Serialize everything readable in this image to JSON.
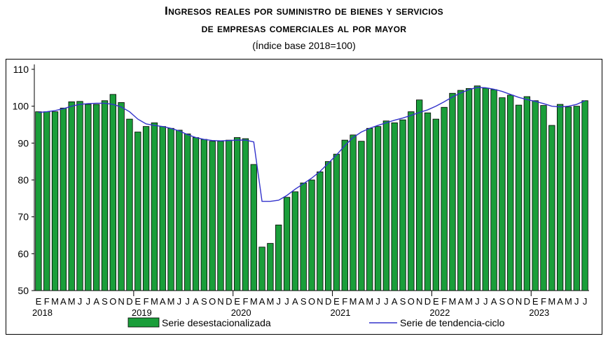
{
  "title_line1": "Ingresos reales por suministro de bienes y servicios",
  "title_line2": "de empresas comerciales al por mayor",
  "subtitle": "(Índice base 2018=100)",
  "chart_data": {
    "type": "bar",
    "ylim": [
      50,
      110
    ],
    "yticks": [
      "50",
      "60",
      "70",
      "80",
      "90",
      "100",
      "110"
    ],
    "month_letters": [
      "E",
      "F",
      "M",
      "A",
      "M",
      "J",
      "J",
      "A",
      "S",
      "O",
      "N",
      "D"
    ],
    "years": [
      "2018",
      "2019",
      "2020",
      "2021",
      "2022",
      "2023"
    ],
    "grid": false,
    "legend": "bottom",
    "series": [
      {
        "name": "Serie desestacionalizada",
        "type": "bar",
        "color": "#1a9e3a",
        "values": [
          98.5,
          98.5,
          98.5,
          99.5,
          101.2,
          101.3,
          100.5,
          100.5,
          101.5,
          103.2,
          101.0,
          96.5,
          93.0,
          94.5,
          95.5,
          94.5,
          94.0,
          93.5,
          92.5,
          91.5,
          91.0,
          90.5,
          90.5,
          90.8,
          91.5,
          91.2,
          84.2,
          61.8,
          62.8,
          67.8,
          75.3,
          76.8,
          79.2,
          80.0,
          82.2,
          85.0,
          87.0,
          90.8,
          92.2,
          90.5,
          94.0,
          94.5,
          96.0,
          95.5,
          96.3,
          98.5,
          101.7,
          98.2,
          96.5,
          99.7,
          103.5,
          104.3,
          104.8,
          105.5,
          104.9,
          104.5,
          102.3,
          103.0,
          100.3,
          102.6,
          101.5,
          100.2,
          94.8,
          100.5,
          99.8,
          100.0,
          101.5
        ]
      },
      {
        "name": "Serie de tendencia-ciclo",
        "type": "line",
        "color": "#3333cc",
        "values": [
          98.3,
          98.5,
          98.8,
          99.3,
          100.0,
          100.5,
          100.7,
          100.8,
          100.8,
          100.5,
          99.8,
          98.5,
          96.5,
          95.2,
          94.8,
          94.5,
          94.0,
          93.3,
          92.3,
          91.5,
          91.0,
          90.7,
          90.6,
          90.7,
          90.8,
          90.8,
          90.3,
          74.2,
          74.2,
          74.5,
          75.8,
          77.5,
          79.0,
          80.5,
          82.3,
          84.5,
          86.8,
          89.3,
          91.5,
          93.0,
          94.0,
          94.8,
          95.5,
          96.2,
          96.8,
          97.5,
          98.3,
          99.0,
          100.0,
          101.2,
          102.5,
          103.6,
          104.5,
          105.1,
          105.0,
          104.6,
          104.0,
          103.2,
          102.4,
          101.8,
          101.3,
          100.7,
          100.0,
          99.8,
          100.0,
          100.5,
          101.5
        ]
      }
    ]
  }
}
